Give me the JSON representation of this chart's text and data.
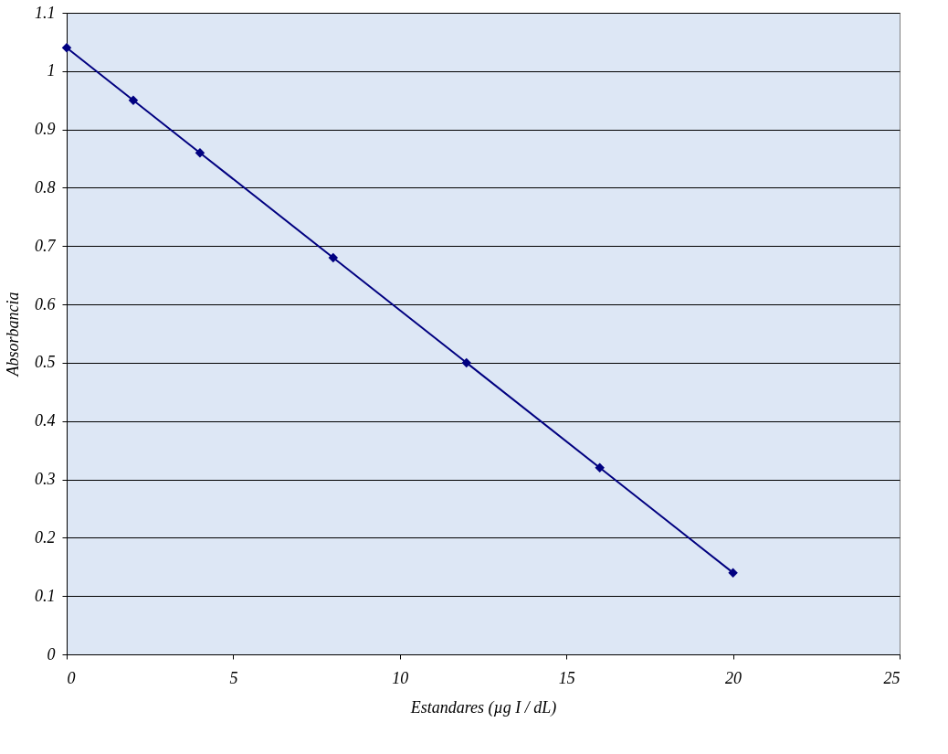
{
  "chart_data": {
    "type": "line",
    "xlabel": "Estandares (µg I / dL)",
    "ylabel": "Absorbancia",
    "x": [
      0,
      2,
      4,
      8,
      12,
      16,
      20
    ],
    "series": [
      {
        "color": "#000080",
        "values": [
          1.04,
          0.95,
          0.86,
          0.68,
          0.5,
          0.32,
          0.14
        ]
      }
    ],
    "xlim": [
      0,
      25
    ],
    "xticks": [
      0,
      5,
      10,
      15,
      20,
      25
    ],
    "ylim": [
      0,
      1.1
    ],
    "yticks": [
      0,
      0.1,
      0.2,
      0.3,
      0.4,
      0.5,
      0.6,
      0.7,
      0.8,
      0.9,
      1,
      1.1
    ],
    "grid": "y",
    "marker": "diamond",
    "line_style": "solid"
  }
}
